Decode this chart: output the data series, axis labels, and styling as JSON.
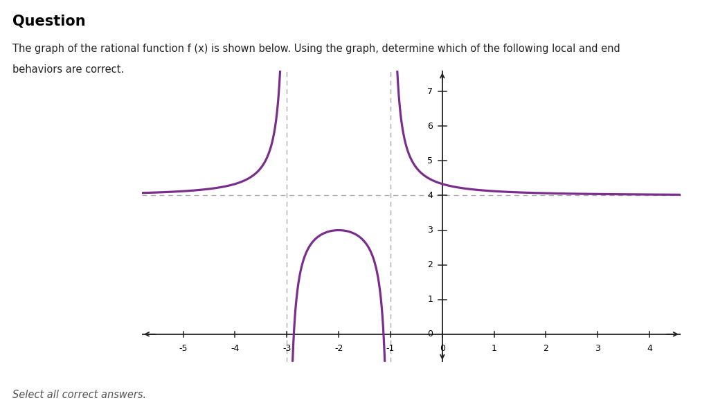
{
  "title": "Question",
  "subtitle_line1": "The graph of the rational function f (x) is shown below. Using the graph, determine which of the following local and end",
  "subtitle_line2": "behaviors are correct.",
  "footer": "Select all correct answers.",
  "func_color": "#7B2D8B",
  "asymptote_color": "#aaaaaa",
  "ha_color": "#aaaaaa",
  "background_color": "#ffffff",
  "xmin": -5.8,
  "xmax": 4.6,
  "ymin": -0.8,
  "ymax": 7.6,
  "vert_asymptotes": [
    -3,
    -1
  ],
  "horiz_asymptote": 4,
  "k": 1.0,
  "xticks": [
    -5,
    -4,
    -3,
    -2,
    -1,
    0,
    1,
    2,
    3,
    4
  ],
  "yticks": [
    1,
    2,
    3,
    4,
    5,
    6,
    7
  ],
  "ytick_zero": 0,
  "axis_color": "#222222",
  "tick_fontsize": 9,
  "title_fontsize": 15,
  "subtitle_fontsize": 10.5,
  "footer_fontsize": 10.5
}
